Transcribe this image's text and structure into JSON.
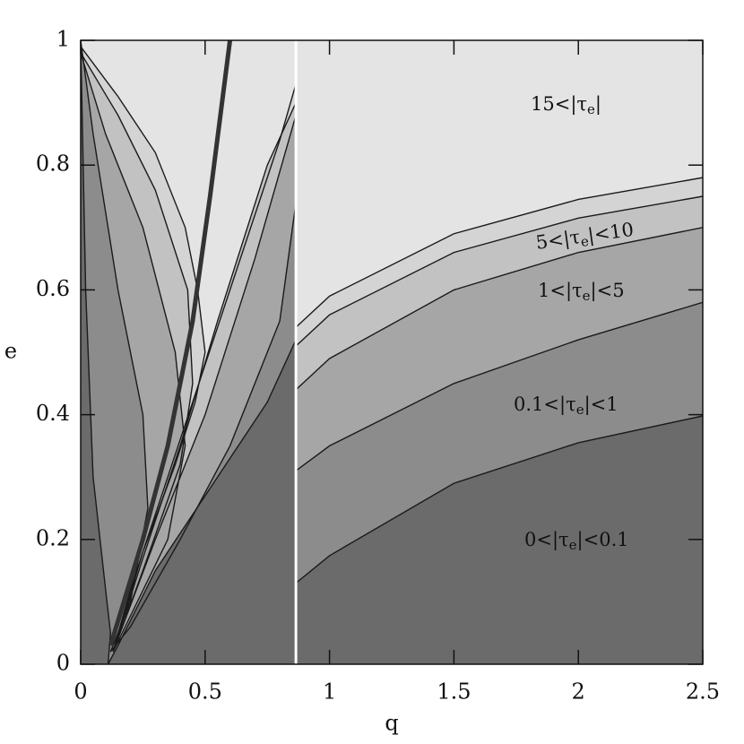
{
  "chart_data": {
    "type": "area",
    "x_label": "q",
    "y_label": "e",
    "xlim": [
      0,
      2.5
    ],
    "ylim": [
      0,
      1
    ],
    "xticks": [
      0,
      0.5,
      1,
      1.5,
      2,
      2.5
    ],
    "yticks": [
      0,
      0.2,
      0.4,
      0.6,
      0.8,
      1
    ],
    "background": "#e4e4e4",
    "divider": 0.865,
    "series": [
      {
        "color": "#d4d4d4",
        "x": [
          0,
          0.15,
          0.3,
          0.42,
          0.47,
          0.5,
          0.46,
          0.38,
          0.25,
          0.13,
          0.2,
          0.35,
          0.5,
          0.65,
          0.8,
          0.865,
          null,
          0.865,
          1,
          1.5,
          2,
          2.5
        ],
        "values": [
          0.99,
          0.91,
          0.82,
          0.7,
          0.6,
          0.5,
          0.42,
          0.32,
          0.18,
          0.02,
          0.12,
          0.3,
          0.48,
          0.66,
          0.84,
          0.93,
          null,
          0.54,
          0.59,
          0.69,
          0.745,
          0.78
        ]
      },
      {
        "color": "#c2c2c2",
        "x": [
          0,
          0.15,
          0.3,
          0.43,
          0.45,
          0.4,
          0.25,
          0.13,
          0.25,
          0.4,
          0.55,
          0.75,
          0.865,
          null,
          0.865,
          1,
          1.5,
          2,
          2.5
        ],
        "values": [
          0.98,
          0.88,
          0.76,
          0.6,
          0.45,
          0.32,
          0.15,
          0.02,
          0.17,
          0.35,
          0.55,
          0.8,
          0.9,
          null,
          0.51,
          0.56,
          0.66,
          0.715,
          0.75
        ]
      },
      {
        "color": "#a6a6a6",
        "x": [
          0,
          0.1,
          0.25,
          0.38,
          0.42,
          0.35,
          0.13,
          0.3,
          0.5,
          0.7,
          0.865,
          null,
          0.865,
          1,
          1.5,
          2,
          2.5
        ],
        "values": [
          0.98,
          0.85,
          0.7,
          0.5,
          0.35,
          0.2,
          0.02,
          0.2,
          0.4,
          0.65,
          0.88,
          null,
          0.44,
          0.49,
          0.6,
          0.66,
          0.7
        ]
      },
      {
        "color": "#8c8c8c",
        "x": [
          0,
          0.05,
          0.15,
          0.25,
          0.27,
          0.2,
          0.12,
          0.2,
          0.4,
          0.6,
          0.8,
          0.865,
          null,
          0.865,
          1,
          1.5,
          2,
          2.5
        ],
        "values": [
          1,
          0.85,
          0.6,
          0.4,
          0.25,
          0.1,
          0.02,
          0.06,
          0.2,
          0.35,
          0.55,
          0.74,
          null,
          0.31,
          0.35,
          0.45,
          0.52,
          0.58
        ]
      },
      {
        "color": "#6b6b6b",
        "x": [
          0,
          0.02,
          0.05,
          0.1,
          0.12,
          0.11,
          0.15,
          0.3,
          0.55,
          0.75,
          0.865,
          null,
          0.865,
          1,
          1.5,
          2,
          2.5
        ],
        "values": [
          1,
          0.6,
          0.3,
          0.12,
          0.05,
          0,
          0.03,
          0.15,
          0.3,
          0.42,
          0.52,
          null,
          0.13,
          0.174,
          0.29,
          0.355,
          0.398
        ]
      }
    ],
    "thick_line": {
      "color": "#333333",
      "x": [
        0.12,
        0.25,
        0.35,
        0.45,
        0.52,
        0.6
      ],
      "values": [
        0.03,
        0.2,
        0.35,
        0.55,
        0.75,
        1
      ]
    },
    "annotations": [
      {
        "text": "15<|τ",
        "sub": "e",
        "tail": "|"
      },
      {
        "text": "5<|τ",
        "sub": "e",
        "tail": "|<10"
      },
      {
        "text": "1<|τ",
        "sub": "e",
        "tail": "|<5"
      },
      {
        "text": "0.1<|τ",
        "sub": "e",
        "tail": "|<1"
      },
      {
        "text": "0<|τ",
        "sub": "e",
        "tail": "|<0.1"
      }
    ]
  }
}
